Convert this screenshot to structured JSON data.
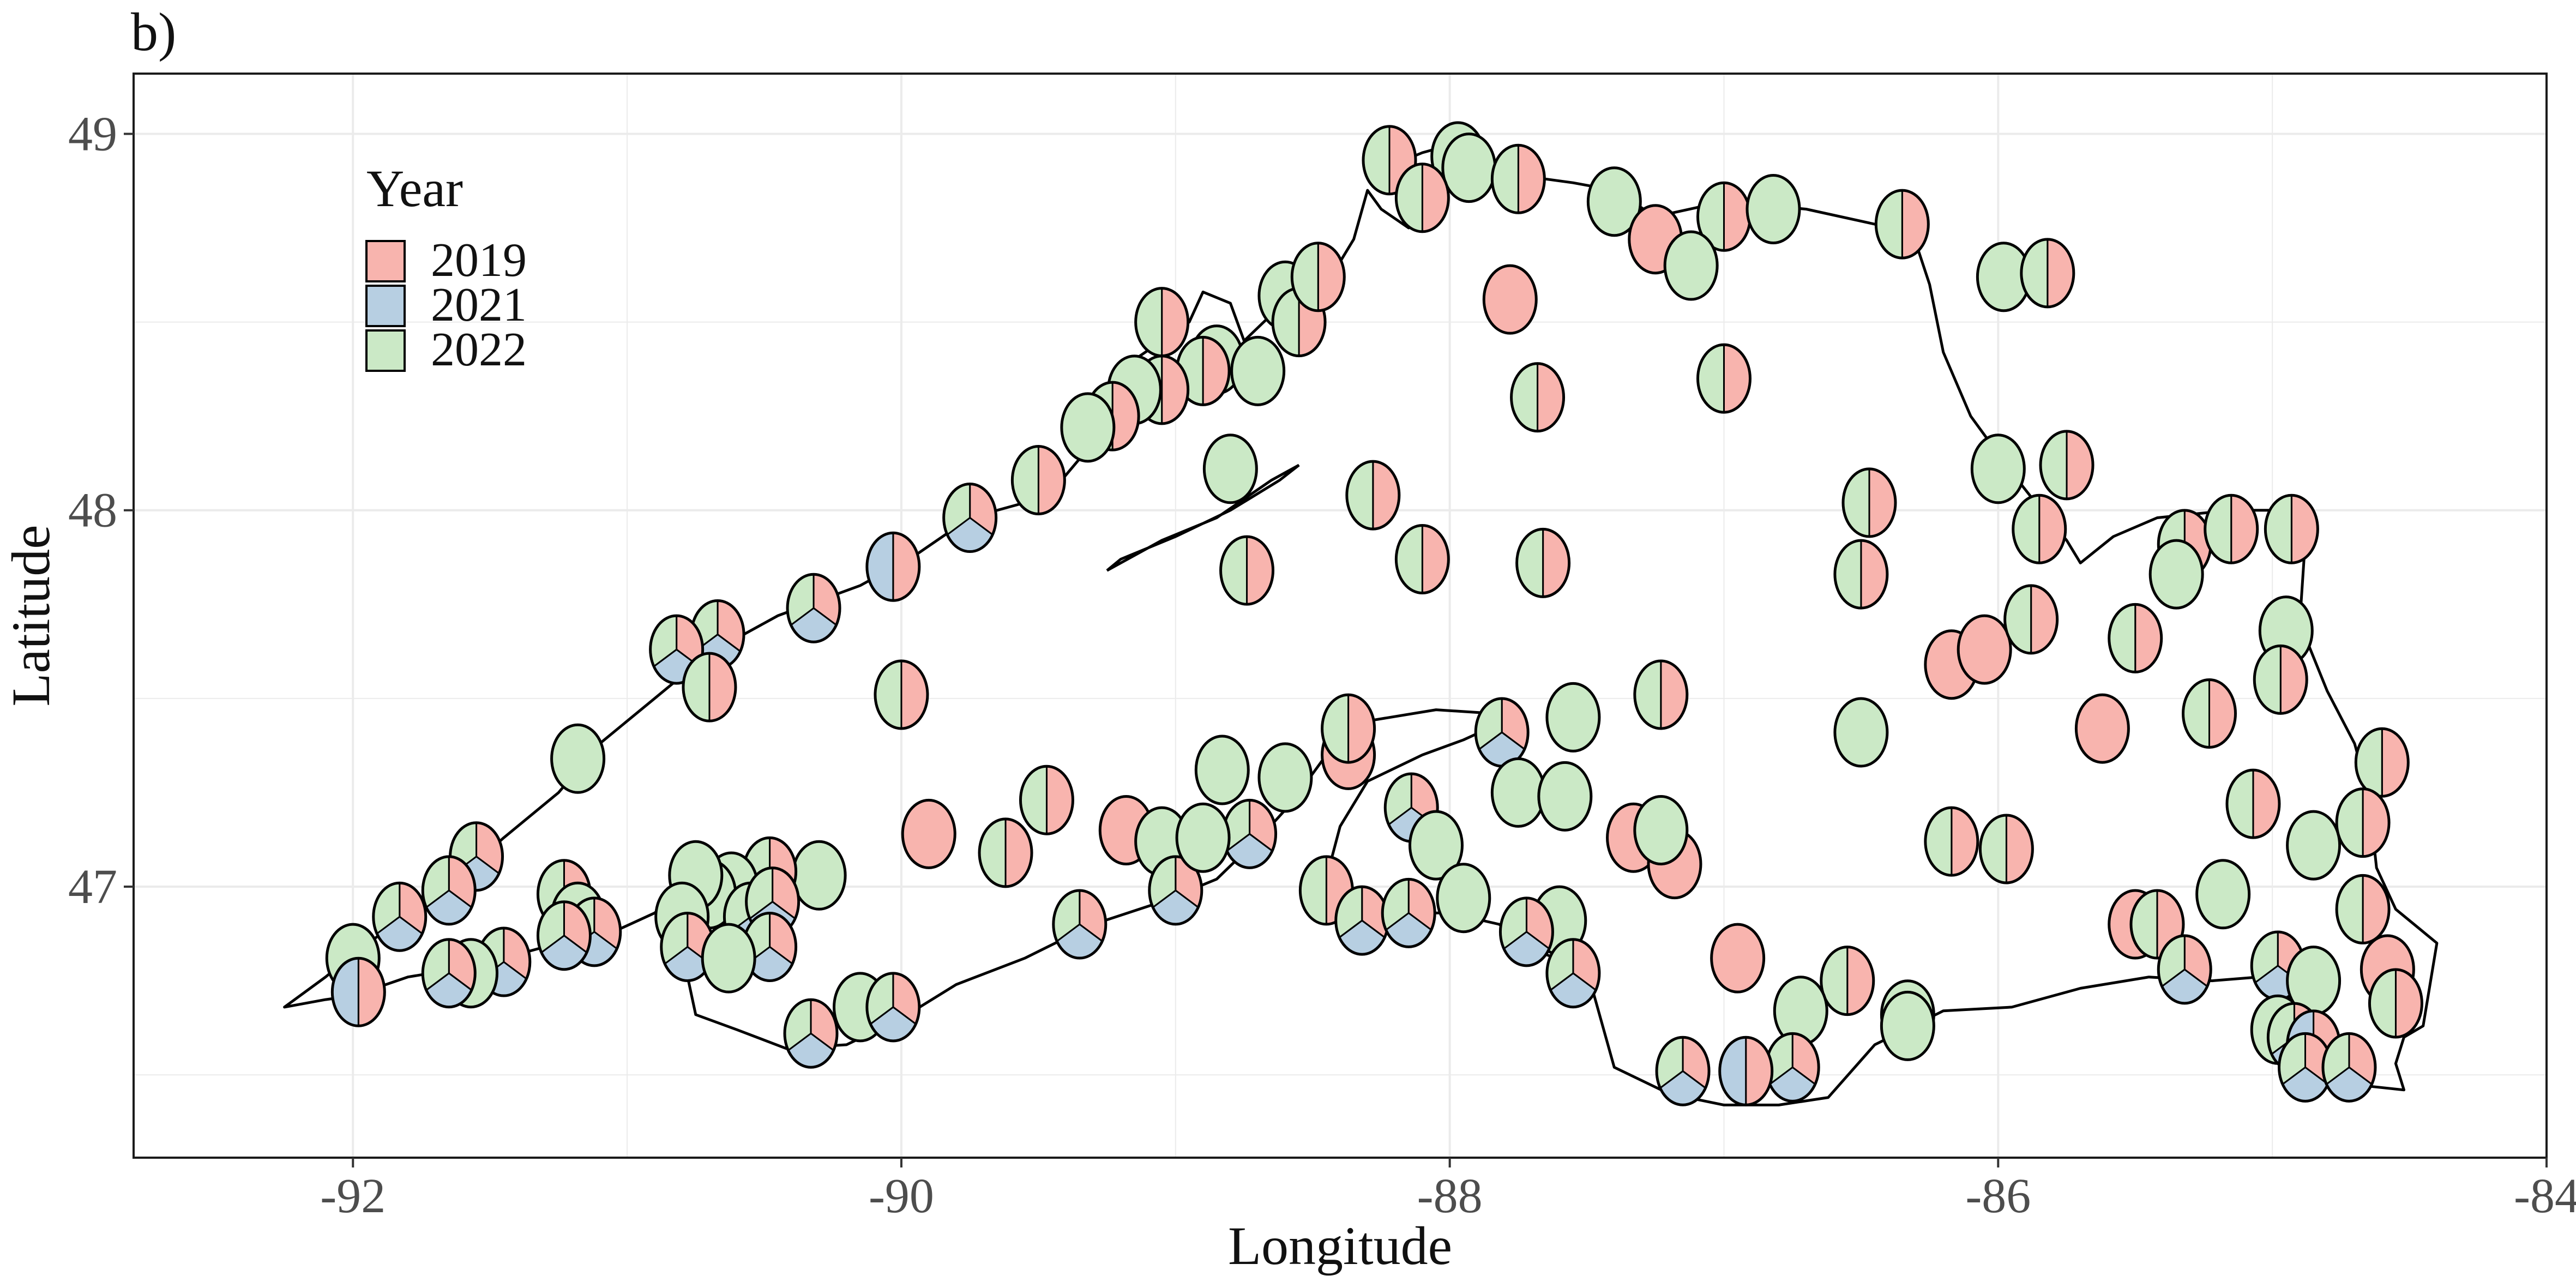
{
  "panel_label": "b)",
  "colors": {
    "2019": "#f8b4ae",
    "2021": "#b7cfe2",
    "2022": "#cbe9c6",
    "grid": "#ebebeb",
    "coast": "#000000"
  },
  "chart_data": {
    "type": "map-pie",
    "xlabel": "Longitude",
    "ylabel": "Latitude",
    "xlim": [
      -92.8,
      -84.0
    ],
    "ylim": [
      46.28,
      49.16
    ],
    "xticks": [
      -92,
      -90,
      -88,
      -86,
      -84
    ],
    "yticks": [
      47,
      48,
      49
    ],
    "x_tick_labels": [
      "-92",
      "-90",
      "-88",
      "-86",
      "-84"
    ],
    "y_tick_labels": [
      "47",
      "48",
      "49"
    ],
    "grid": true,
    "legend": {
      "title": "Year",
      "placement": "top-left",
      "entries": [
        "2019",
        "2021",
        "2022"
      ]
    },
    "sites": [
      {
        "lon": -88.22,
        "lat": 48.93,
        "years": [
          "2019",
          "2022"
        ]
      },
      {
        "lon": -87.97,
        "lat": 48.94,
        "years": [
          "2022"
        ]
      },
      {
        "lon": -87.93,
        "lat": 48.91,
        "years": [
          "2022"
        ]
      },
      {
        "lon": -88.1,
        "lat": 48.83,
        "years": [
          "2019",
          "2022"
        ]
      },
      {
        "lon": -87.75,
        "lat": 48.88,
        "years": [
          "2019",
          "2022"
        ]
      },
      {
        "lon": -87.4,
        "lat": 48.82,
        "years": [
          "2022"
        ]
      },
      {
        "lon": -87.25,
        "lat": 48.72,
        "years": [
          "2019"
        ]
      },
      {
        "lon": -87.0,
        "lat": 48.78,
        "years": [
          "2019",
          "2022"
        ]
      },
      {
        "lon": -86.82,
        "lat": 48.8,
        "years": [
          "2022"
        ]
      },
      {
        "lon": -87.12,
        "lat": 48.65,
        "years": [
          "2022"
        ]
      },
      {
        "lon": -86.35,
        "lat": 48.76,
        "years": [
          "2019",
          "2022"
        ]
      },
      {
        "lon": -85.98,
        "lat": 48.62,
        "years": [
          "2022"
        ]
      },
      {
        "lon": -85.82,
        "lat": 48.63,
        "years": [
          "2019",
          "2022"
        ]
      },
      {
        "lon": -87.78,
        "lat": 48.56,
        "years": [
          "2019"
        ]
      },
      {
        "lon": -87.68,
        "lat": 48.3,
        "years": [
          "2019",
          "2022"
        ]
      },
      {
        "lon": -87.0,
        "lat": 48.35,
        "years": [
          "2019",
          "2022"
        ]
      },
      {
        "lon": -86.0,
        "lat": 48.11,
        "years": [
          "2022"
        ]
      },
      {
        "lon": -85.75,
        "lat": 48.12,
        "years": [
          "2019",
          "2022"
        ]
      },
      {
        "lon": -86.47,
        "lat": 48.02,
        "years": [
          "2019",
          "2022"
        ]
      },
      {
        "lon": -86.5,
        "lat": 47.83,
        "years": [
          "2019",
          "2022"
        ]
      },
      {
        "lon": -88.28,
        "lat": 48.04,
        "years": [
          "2019",
          "2022"
        ]
      },
      {
        "lon": -88.1,
        "lat": 47.87,
        "years": [
          "2019",
          "2022"
        ]
      },
      {
        "lon": -87.66,
        "lat": 47.86,
        "years": [
          "2019",
          "2022"
        ]
      },
      {
        "lon": -88.74,
        "lat": 47.84,
        "years": [
          "2019",
          "2022"
        ]
      },
      {
        "lon": -88.8,
        "lat": 48.11,
        "years": [
          "2022"
        ]
      },
      {
        "lon": -89.5,
        "lat": 48.08,
        "years": [
          "2019",
          "2022"
        ]
      },
      {
        "lon": -89.75,
        "lat": 47.98,
        "years": [
          "2019",
          "2021",
          "2022"
        ]
      },
      {
        "lon": -90.03,
        "lat": 47.85,
        "years": [
          "2019",
          "2021"
        ]
      },
      {
        "lon": -90.32,
        "lat": 47.74,
        "years": [
          "2019",
          "2021",
          "2022"
        ]
      },
      {
        "lon": -90.67,
        "lat": 47.67,
        "years": [
          "2019",
          "2021",
          "2022"
        ]
      },
      {
        "lon": -90.82,
        "lat": 47.63,
        "years": [
          "2019",
          "2021",
          "2022"
        ]
      },
      {
        "lon": -90.7,
        "lat": 47.53,
        "years": [
          "2019",
          "2022"
        ]
      },
      {
        "lon": -90.0,
        "lat": 47.51,
        "years": [
          "2019",
          "2022"
        ]
      },
      {
        "lon": -91.18,
        "lat": 47.34,
        "years": [
          "2022"
        ]
      },
      {
        "lon": -89.9,
        "lat": 47.14,
        "years": [
          "2019"
        ]
      },
      {
        "lon": -89.47,
        "lat": 47.23,
        "years": [
          "2019",
          "2022"
        ]
      },
      {
        "lon": -89.62,
        "lat": 47.09,
        "years": [
          "2019",
          "2022"
        ]
      },
      {
        "lon": -89.18,
        "lat": 47.15,
        "years": [
          "2019"
        ]
      },
      {
        "lon": -89.05,
        "lat": 47.12,
        "years": [
          "2022"
        ]
      },
      {
        "lon": -89.0,
        "lat": 46.99,
        "years": [
          "2019",
          "2021",
          "2022"
        ]
      },
      {
        "lon": -88.83,
        "lat": 47.31,
        "years": [
          "2022"
        ]
      },
      {
        "lon": -88.6,
        "lat": 47.29,
        "years": [
          "2022"
        ]
      },
      {
        "lon": -88.73,
        "lat": 47.14,
        "years": [
          "2019",
          "2021",
          "2022"
        ]
      },
      {
        "lon": -88.9,
        "lat": 47.13,
        "years": [
          "2022"
        ]
      },
      {
        "lon": -88.37,
        "lat": 47.35,
        "years": [
          "2019"
        ]
      },
      {
        "lon": -88.37,
        "lat": 47.42,
        "years": [
          "2019",
          "2022"
        ]
      },
      {
        "lon": -88.14,
        "lat": 47.21,
        "years": [
          "2019",
          "2021",
          "2022"
        ]
      },
      {
        "lon": -88.05,
        "lat": 47.11,
        "years": [
          "2022"
        ]
      },
      {
        "lon": -87.81,
        "lat": 47.41,
        "years": [
          "2019",
          "2021",
          "2022"
        ]
      },
      {
        "lon": -87.75,
        "lat": 47.25,
        "years": [
          "2022"
        ]
      },
      {
        "lon": -87.55,
        "lat": 47.45,
        "years": [
          "2022"
        ]
      },
      {
        "lon": -87.58,
        "lat": 47.24,
        "years": [
          "2022"
        ]
      },
      {
        "lon": -87.33,
        "lat": 47.13,
        "years": [
          "2019"
        ]
      },
      {
        "lon": -87.18,
        "lat": 47.06,
        "years": [
          "2019"
        ]
      },
      {
        "lon": -87.23,
        "lat": 47.15,
        "years": [
          "2022"
        ]
      },
      {
        "lon": -87.23,
        "lat": 47.51,
        "years": [
          "2019",
          "2022"
        ]
      },
      {
        "lon": -86.5,
        "lat": 47.41,
        "years": [
          "2022"
        ]
      },
      {
        "lon": -86.17,
        "lat": 47.59,
        "years": [
          "2019"
        ]
      },
      {
        "lon": -86.05,
        "lat": 47.63,
        "years": [
          "2019"
        ]
      },
      {
        "lon": -85.88,
        "lat": 47.71,
        "years": [
          "2019",
          "2022"
        ]
      },
      {
        "lon": -85.62,
        "lat": 47.42,
        "years": [
          "2019"
        ]
      },
      {
        "lon": -85.5,
        "lat": 47.66,
        "years": [
          "2019",
          "2022"
        ]
      },
      {
        "lon": -85.85,
        "lat": 47.95,
        "years": [
          "2019",
          "2022"
        ]
      },
      {
        "lon": -85.32,
        "lat": 47.91,
        "years": [
          "2019",
          "2022"
        ]
      },
      {
        "lon": -85.35,
        "lat": 47.83,
        "years": [
          "2022"
        ]
      },
      {
        "lon": -85.15,
        "lat": 47.95,
        "years": [
          "2019",
          "2022"
        ]
      },
      {
        "lon": -84.93,
        "lat": 47.95,
        "years": [
          "2019",
          "2022"
        ]
      },
      {
        "lon": -84.95,
        "lat": 47.68,
        "years": [
          "2022"
        ]
      },
      {
        "lon": -84.97,
        "lat": 47.55,
        "years": [
          "2019",
          "2022"
        ]
      },
      {
        "lon": -85.23,
        "lat": 47.46,
        "years": [
          "2019",
          "2022"
        ]
      },
      {
        "lon": -85.07,
        "lat": 47.22,
        "years": [
          "2019",
          "2022"
        ]
      },
      {
        "lon": -84.85,
        "lat": 47.11,
        "years": [
          "2022"
        ]
      },
      {
        "lon": -84.6,
        "lat": 47.33,
        "years": [
          "2019",
          "2022"
        ]
      },
      {
        "lon": -84.67,
        "lat": 47.17,
        "years": [
          "2019",
          "2022"
        ]
      },
      {
        "lon": -85.18,
        "lat": 46.98,
        "years": [
          "2022"
        ]
      },
      {
        "lon": -84.67,
        "lat": 46.94,
        "years": [
          "2019",
          "2022"
        ]
      },
      {
        "lon": -86.17,
        "lat": 47.12,
        "years": [
          "2019",
          "2022"
        ]
      },
      {
        "lon": -85.97,
        "lat": 47.1,
        "years": [
          "2019",
          "2022"
        ]
      },
      {
        "lon": -85.5,
        "lat": 46.9,
        "years": [
          "2019"
        ]
      },
      {
        "lon": -85.42,
        "lat": 46.9,
        "years": [
          "2019",
          "2022"
        ]
      },
      {
        "lon": -85.32,
        "lat": 46.78,
        "years": [
          "2019",
          "2021",
          "2022"
        ]
      },
      {
        "lon": -84.98,
        "lat": 46.79,
        "years": [
          "2019",
          "2021",
          "2022"
        ]
      },
      {
        "lon": -84.85,
        "lat": 46.75,
        "years": [
          "2022"
        ]
      },
      {
        "lon": -84.58,
        "lat": 46.78,
        "years": [
          "2019"
        ]
      },
      {
        "lon": -84.55,
        "lat": 46.69,
        "years": [
          "2019",
          "2022"
        ]
      },
      {
        "lon": -84.98,
        "lat": 46.62,
        "years": [
          "2022"
        ]
      },
      {
        "lon": -84.92,
        "lat": 46.6,
        "years": [
          "2019",
          "2021",
          "2022"
        ]
      },
      {
        "lon": -84.85,
        "lat": 46.58,
        "years": [
          "2019",
          "2021"
        ]
      },
      {
        "lon": -84.88,
        "lat": 46.52,
        "years": [
          "2019",
          "2021",
          "2022"
        ]
      },
      {
        "lon": -84.72,
        "lat": 46.52,
        "years": [
          "2019",
          "2021",
          "2022"
        ]
      },
      {
        "lon": -86.95,
        "lat": 46.81,
        "years": [
          "2019"
        ]
      },
      {
        "lon": -86.55,
        "lat": 46.75,
        "years": [
          "2019",
          "2022"
        ]
      },
      {
        "lon": -86.72,
        "lat": 46.67,
        "years": [
          "2022"
        ]
      },
      {
        "lon": -86.33,
        "lat": 46.66,
        "years": [
          "2022"
        ]
      },
      {
        "lon": -86.33,
        "lat": 46.63,
        "years": [
          "2022"
        ]
      },
      {
        "lon": -86.75,
        "lat": 46.52,
        "years": [
          "2019",
          "2021",
          "2022"
        ]
      },
      {
        "lon": -86.92,
        "lat": 46.51,
        "years": [
          "2019",
          "2021"
        ]
      },
      {
        "lon": -87.15,
        "lat": 46.51,
        "years": [
          "2019",
          "2021",
          "2022"
        ]
      },
      {
        "lon": -87.6,
        "lat": 46.91,
        "years": [
          "2022"
        ]
      },
      {
        "lon": -87.72,
        "lat": 46.88,
        "years": [
          "2019",
          "2021",
          "2022"
        ]
      },
      {
        "lon": -87.55,
        "lat": 46.77,
        "years": [
          "2019",
          "2021",
          "2022"
        ]
      },
      {
        "lon": -87.95,
        "lat": 46.97,
        "years": [
          "2022"
        ]
      },
      {
        "lon": -88.45,
        "lat": 46.99,
        "years": [
          "2019",
          "2022"
        ]
      },
      {
        "lon": -88.32,
        "lat": 46.91,
        "years": [
          "2019",
          "2021",
          "2022"
        ]
      },
      {
        "lon": -88.15,
        "lat": 46.93,
        "years": [
          "2019",
          "2021",
          "2022"
        ]
      },
      {
        "lon": -89.35,
        "lat": 46.9,
        "years": [
          "2019",
          "2021",
          "2022"
        ]
      },
      {
        "lon": -90.33,
        "lat": 46.61,
        "years": [
          "2019",
          "2021",
          "2022"
        ]
      },
      {
        "lon": -90.15,
        "lat": 46.68,
        "years": [
          "2022"
        ]
      },
      {
        "lon": -90.03,
        "lat": 46.68,
        "years": [
          "2019",
          "2021",
          "2022"
        ]
      },
      {
        "lon": -90.3,
        "lat": 47.03,
        "years": [
          "2022"
        ]
      },
      {
        "lon": -90.48,
        "lat": 47.04,
        "years": [
          "2019",
          "2022"
        ]
      },
      {
        "lon": -90.62,
        "lat": 47.0,
        "years": [
          "2022"
        ]
      },
      {
        "lon": -90.7,
        "lat": 46.98,
        "years": [
          "2022"
        ]
      },
      {
        "lon": -90.75,
        "lat": 47.03,
        "years": [
          "2022"
        ]
      },
      {
        "lon": -90.8,
        "lat": 46.92,
        "years": [
          "2022"
        ]
      },
      {
        "lon": -90.78,
        "lat": 46.84,
        "years": [
          "2019",
          "2021",
          "2022"
        ]
      },
      {
        "lon": -90.55,
        "lat": 46.92,
        "years": [
          "2019",
          "2021",
          "2022"
        ]
      },
      {
        "lon": -90.47,
        "lat": 46.96,
        "years": [
          "2019",
          "2021",
          "2022"
        ]
      },
      {
        "lon": -90.48,
        "lat": 46.84,
        "years": [
          "2019",
          "2021",
          "2022"
        ]
      },
      {
        "lon": -90.63,
        "lat": 46.81,
        "years": [
          "2022"
        ]
      },
      {
        "lon": -91.23,
        "lat": 46.98,
        "years": [
          "2019",
          "2022"
        ]
      },
      {
        "lon": -91.18,
        "lat": 46.92,
        "years": [
          "2022"
        ]
      },
      {
        "lon": -91.12,
        "lat": 46.88,
        "years": [
          "2019",
          "2021",
          "2022"
        ]
      },
      {
        "lon": -91.23,
        "lat": 46.87,
        "years": [
          "2019",
          "2021",
          "2022"
        ]
      },
      {
        "lon": -91.55,
        "lat": 47.08,
        "years": [
          "2019",
          "2021",
          "2022"
        ]
      },
      {
        "lon": -91.65,
        "lat": 46.99,
        "years": [
          "2019",
          "2021",
          "2022"
        ]
      },
      {
        "lon": -91.83,
        "lat": 46.92,
        "years": [
          "2019",
          "2021",
          "2022"
        ]
      },
      {
        "lon": -91.45,
        "lat": 46.8,
        "years": [
          "2019",
          "2021",
          "2022"
        ]
      },
      {
        "lon": -91.57,
        "lat": 46.77,
        "years": [
          "2022"
        ]
      },
      {
        "lon": -91.65,
        "lat": 46.77,
        "years": [
          "2019",
          "2021",
          "2022"
        ]
      },
      {
        "lon": -92.0,
        "lat": 46.81,
        "years": [
          "2022"
        ]
      },
      {
        "lon": -91.98,
        "lat": 46.72,
        "years": [
          "2019",
          "2021"
        ]
      },
      {
        "lon": -89.05,
        "lat": 48.5,
        "years": [
          "2019",
          "2022"
        ]
      },
      {
        "lon": -88.85,
        "lat": 48.4,
        "years": [
          "2022"
        ]
      },
      {
        "lon": -88.9,
        "lat": 48.37,
        "years": [
          "2019",
          "2022"
        ]
      },
      {
        "lon": -89.05,
        "lat": 48.32,
        "years": [
          "2019",
          "2022"
        ]
      },
      {
        "lon": -89.15,
        "lat": 48.32,
        "years": [
          "2022"
        ]
      },
      {
        "lon": -89.23,
        "lat": 48.25,
        "years": [
          "2019",
          "2022"
        ]
      },
      {
        "lon": -89.32,
        "lat": 48.22,
        "years": [
          "2022"
        ]
      },
      {
        "lon": -88.7,
        "lat": 48.37,
        "years": [
          "2022"
        ]
      },
      {
        "lon": -88.6,
        "lat": 48.57,
        "years": [
          "2022"
        ]
      },
      {
        "lon": -88.55,
        "lat": 48.5,
        "years": [
          "2019",
          "2022"
        ]
      },
      {
        "lon": -88.48,
        "lat": 48.62,
        "years": [
          "2019",
          "2022"
        ]
      }
    ]
  }
}
